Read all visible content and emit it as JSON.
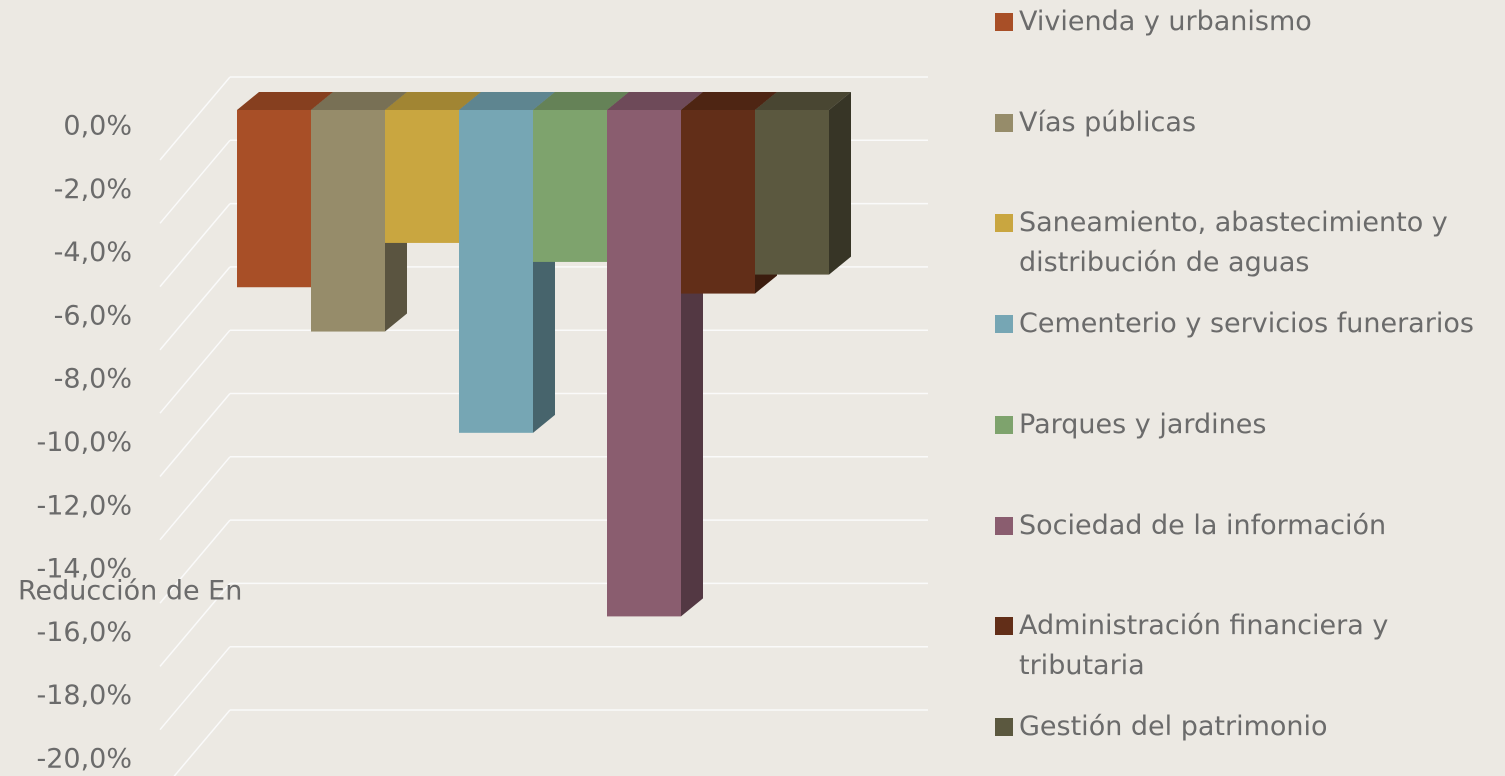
{
  "chart_data": {
    "type": "bar3d",
    "categories": [
      "Reducción de En"
    ],
    "series": [
      {
        "name": "Vivienda y urbanismo",
        "color": "#a84f27",
        "values": [
          -5.6
        ]
      },
      {
        "name": "Vías públicas",
        "color": "#968c6a",
        "values": [
          -7.0
        ]
      },
      {
        "name": "Saneamiento, abastecimiento y distribución de aguas",
        "color": "#c9a640",
        "values": [
          -4.2
        ]
      },
      {
        "name": "Cementerio y servicios funerarios",
        "color": "#76a6b4",
        "values": [
          -10.2
        ]
      },
      {
        "name": "Parques y jardines",
        "color": "#7ea36d",
        "values": [
          -4.8
        ]
      },
      {
        "name": "Sociedad de la información",
        "color": "#8a5d6f",
        "values": [
          -16.0
        ]
      },
      {
        "name": "Administración financiera y tributaria",
        "color": "#622e18",
        "values": [
          -5.8
        ]
      },
      {
        "name": "Gestión del patrimonio",
        "color": "#5b583f",
        "values": [
          -5.2
        ]
      }
    ],
    "ylim": [
      -20,
      0
    ],
    "yticks": [
      {
        "value": 0,
        "label": "0,0%"
      },
      {
        "value": -2,
        "label": "-2,0%"
      },
      {
        "value": -4,
        "label": "-4,0%"
      },
      {
        "value": -6,
        "label": "-6,0%"
      },
      {
        "value": -8,
        "label": "-8,0%"
      },
      {
        "value": -10,
        "label": "-10,0%"
      },
      {
        "value": -12,
        "label": "-12,0%"
      },
      {
        "value": -14,
        "label": "-14,0%"
      },
      {
        "value": -16,
        "label": "-16,0%"
      },
      {
        "value": -18,
        "label": "-18,0%"
      },
      {
        "value": -20,
        "label": "-20,0%"
      }
    ],
    "grid": true,
    "legend": "right"
  }
}
